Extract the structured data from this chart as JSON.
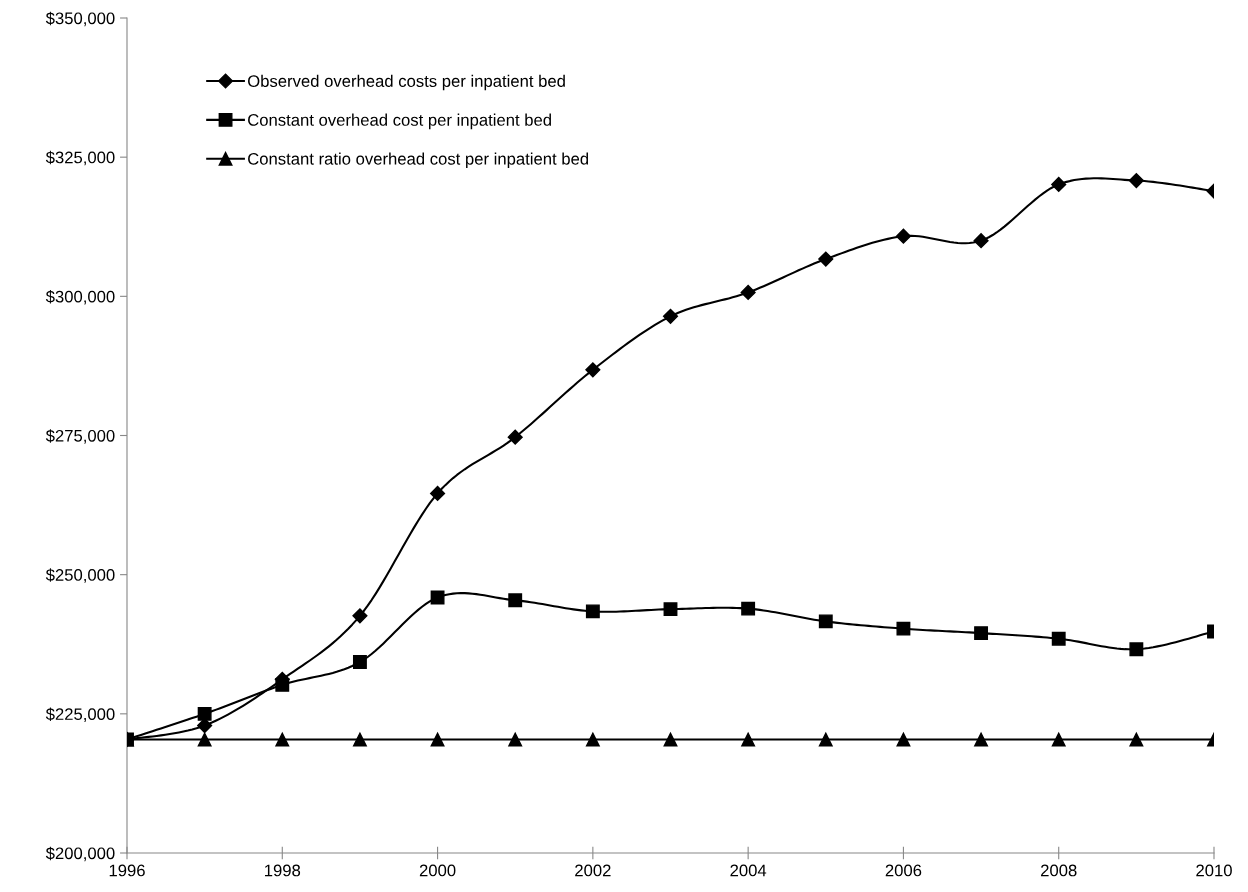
{
  "chart_data": {
    "type": "line",
    "x": [
      1996,
      1997,
      1998,
      1999,
      2000,
      2001,
      2002,
      2003,
      2004,
      2005,
      2006,
      2007,
      2008,
      2009,
      2010
    ],
    "series": [
      {
        "name": "Observed overhead costs per inpatient bed",
        "color": "#000000",
        "marker": "diamond",
        "values": [
          220400,
          222900,
          231200,
          242600,
          264600,
          274700,
          286800,
          296400,
          300700,
          306700,
          310800,
          310000,
          320100,
          320800,
          318900
        ]
      },
      {
        "name": "Constant overhead cost per inpatient bed",
        "color": "#000000",
        "marker": "square",
        "values": [
          220400,
          225000,
          230200,
          234300,
          245900,
          245400,
          243400,
          243800,
          243900,
          241600,
          240300,
          239500,
          238500,
          236600,
          239800
        ]
      },
      {
        "name": "Constant ratio overhead cost per inpatient bed",
        "color": "#000000",
        "marker": "triangle",
        "values": [
          220400,
          220400,
          220400,
          220400,
          220400,
          220400,
          220400,
          220400,
          220400,
          220400,
          220400,
          220400,
          220400,
          220400,
          220400
        ]
      }
    ],
    "xlim": [
      1996,
      2010
    ],
    "xticks": [
      1996,
      1998,
      2000,
      2002,
      2004,
      2006,
      2008,
      2010
    ],
    "ylim": [
      200000,
      350000
    ],
    "yticks": [
      {
        "value": 200000,
        "label": "$200,000"
      },
      {
        "value": 225000,
        "label": "$225,000"
      },
      {
        "value": 250000,
        "label": "$250,000"
      },
      {
        "value": 275000,
        "label": "$275,000"
      },
      {
        "value": 300000,
        "label": "$300,000"
      },
      {
        "value": 325000,
        "label": "$325,000"
      },
      {
        "value": 350000,
        "label": "$350,000"
      }
    ],
    "grid": false,
    "legend": "top left",
    "line_style": "solid"
  }
}
